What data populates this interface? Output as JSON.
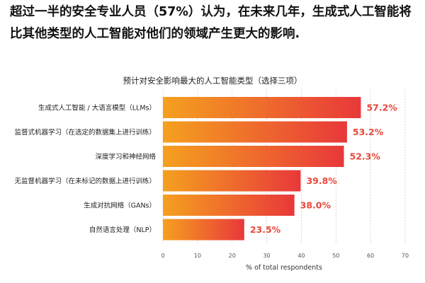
{
  "headline": "超过一半的安全专业人员（57%）认为，在未来几年，生成式人工智能将比其他类型的人工智能对他们的领域产生更大的影响.",
  "chart_data": {
    "type": "bar",
    "orientation": "horizontal",
    "title": "预计对安全影响最大的人工智能类型（选择三项）",
    "xlabel": "% of total respondents",
    "ylabel": "",
    "xlim": [
      0,
      70
    ],
    "ticks": [
      0,
      10,
      20,
      30,
      40,
      50,
      60,
      70
    ],
    "grid": true,
    "categories": [
      "生成式人工智能 / 大语言模型（LLMs）",
      "监督式机器学习（在选定的数据集上进行训练）",
      "深度学习和神经网络",
      "无监督机器学习（在未标记的数据上进行训练）",
      "生成对抗网络（GANs）",
      "自然语言处理（NLP）"
    ],
    "values": [
      57.2,
      53.2,
      52.3,
      39.8,
      38.0,
      23.5
    ],
    "value_labels": [
      "57.2%",
      "53.2%",
      "52.3%",
      "39.8%",
      "38.0%",
      "23.5%"
    ],
    "colors": {
      "bar_start": "#f5a01f",
      "bar_end": "#e8383a",
      "value_text": "#e8473a",
      "grid": "#cccccc"
    }
  }
}
